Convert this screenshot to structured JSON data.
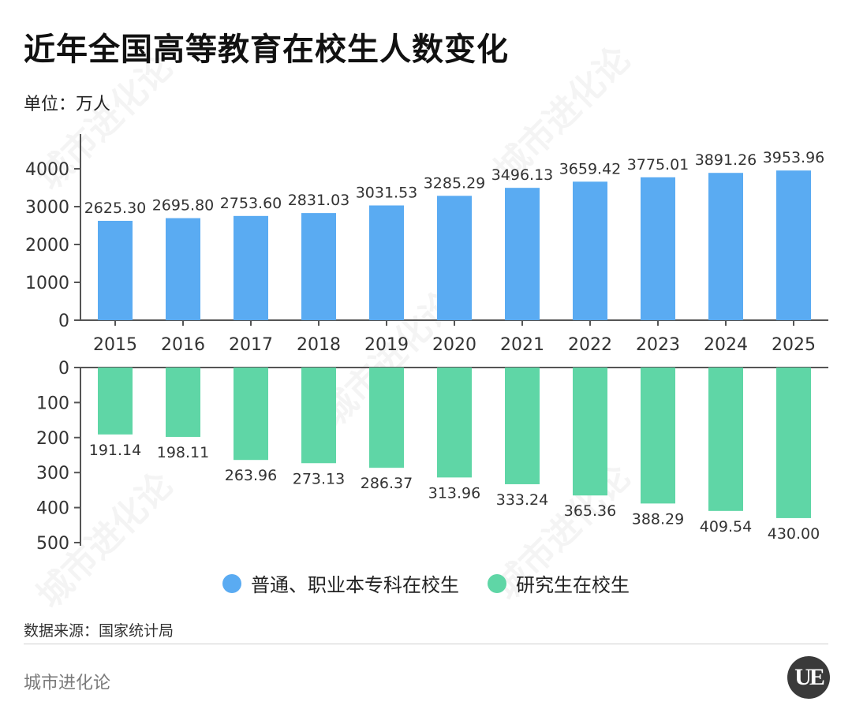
{
  "title": "近年全国高等教育在校生人数变化",
  "unit_label": "单位：万人",
  "source": "数据来源：国家统计局",
  "brand": "城市进化论",
  "logo_text": "UE",
  "watermark_text": "城市进化论",
  "colors": {
    "series_top": "#5aabf2",
    "series_bottom": "#5fd6a6",
    "axis": "#555555"
  },
  "chart_data": [
    {
      "type": "bar",
      "categories": [
        "2015",
        "2016",
        "2017",
        "2018",
        "2019",
        "2020",
        "2021",
        "2022",
        "2023",
        "2024",
        "2025"
      ],
      "series": [
        {
          "name": "普通、职业本专科在校生",
          "values": [
            2625.3,
            2695.8,
            2753.6,
            2831.03,
            3031.53,
            3285.29,
            3496.13,
            3659.42,
            3775.01,
            3891.26,
            3953.96
          ],
          "labels": [
            "2625.30",
            "2695.80",
            "2753.60",
            "2831.03",
            "3031.53",
            "3285.29",
            "3496.13",
            "3659.42",
            "3775.01",
            "3891.26",
            "3953.96"
          ]
        }
      ],
      "ylim": [
        0,
        4000
      ],
      "yticks": [
        "0",
        "1000",
        "2000",
        "3000",
        "4000"
      ]
    },
    {
      "type": "bar",
      "orientation": "downward",
      "categories": [
        "2015",
        "2016",
        "2017",
        "2018",
        "2019",
        "2020",
        "2021",
        "2022",
        "2023",
        "2024",
        "2025"
      ],
      "series": [
        {
          "name": "研究生在校生",
          "values": [
            191.14,
            198.11,
            263.96,
            273.13,
            286.37,
            313.96,
            333.24,
            365.36,
            388.29,
            409.54,
            430.0
          ],
          "labels": [
            "191.14",
            "198.11",
            "263.96",
            "273.13",
            "286.37",
            "313.96",
            "333.24",
            "365.36",
            "388.29",
            "409.54",
            "430.00"
          ]
        }
      ],
      "ylim": [
        0,
        500
      ],
      "yticks": [
        "0",
        "100",
        "200",
        "300",
        "400",
        "500"
      ]
    }
  ],
  "legend": [
    {
      "label": "普通、职业本专科在校生",
      "color": "#5aabf2"
    },
    {
      "label": "研究生在校生",
      "color": "#5fd6a6"
    }
  ]
}
